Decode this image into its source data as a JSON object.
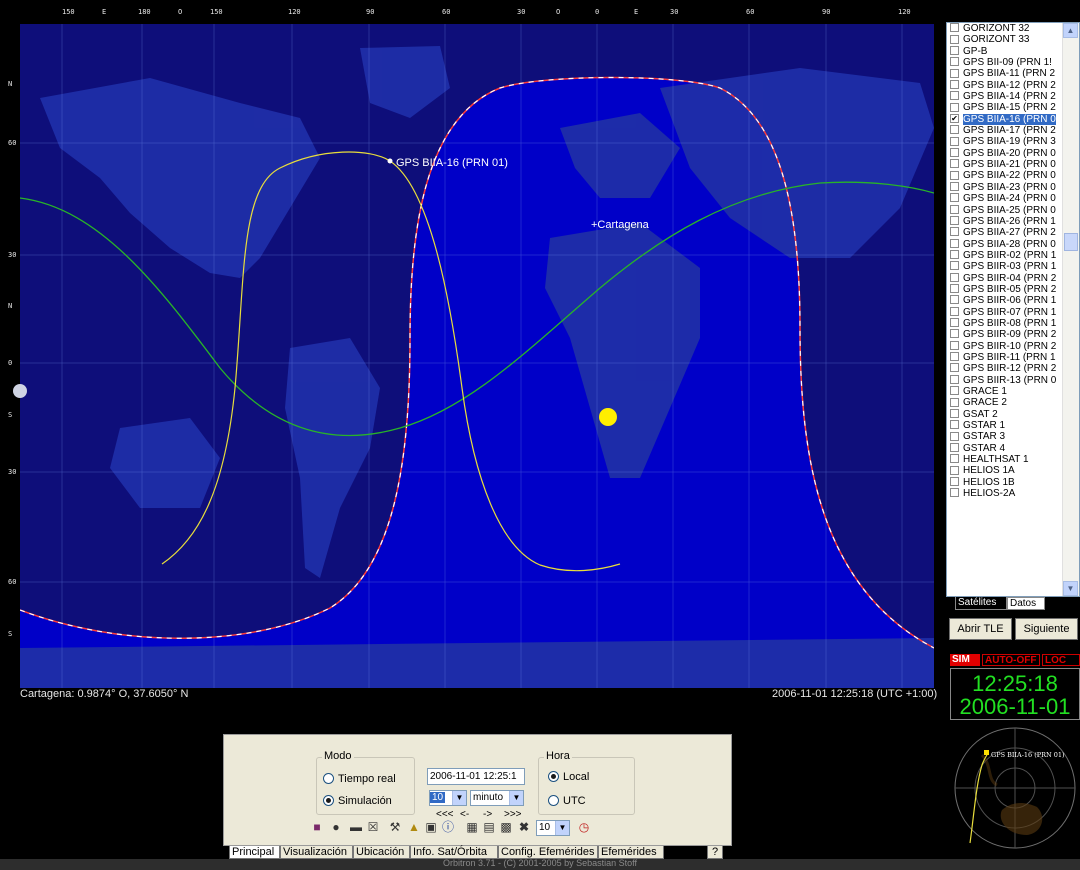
{
  "map": {
    "lon_labels": [
      "150",
      "E",
      "180",
      "O",
      "150",
      "120",
      "90",
      "60",
      "30",
      "O",
      "0",
      "E",
      "30",
      "60",
      "90",
      "120"
    ],
    "lat_labels": [
      "N",
      "60",
      "30",
      "N",
      "0",
      "S",
      "30",
      "60",
      "S"
    ],
    "satellite_label": "GPS BIIA-16 (PRN 01)",
    "city_label": "+Cartagena",
    "colors": {
      "ocean": "#0000c8",
      "night": "#0e0e7a",
      "land": "#1f2ea8",
      "track": "#e8dd3c",
      "equatorline": "#28b428",
      "sun": "#ffee00"
    }
  },
  "status": {
    "location": "Cartagena: 0.9874° O, 37.6050° N",
    "datetime": "2006-11-01 12:25:18 (UTC +1:00)"
  },
  "satellites": {
    "items": [
      {
        "name": "GORIZONT 32",
        "checked": false
      },
      {
        "name": "GORIZONT 33",
        "checked": false
      },
      {
        "name": "GP-B",
        "checked": false
      },
      {
        "name": "GPS BII-09 (PRN 1!",
        "checked": false
      },
      {
        "name": "GPS BIIA-11 (PRN 2",
        "checked": false
      },
      {
        "name": "GPS BIIA-12 (PRN 2",
        "checked": false
      },
      {
        "name": "GPS BIIA-14 (PRN 2",
        "checked": false
      },
      {
        "name": "GPS BIIA-15 (PRN 2",
        "checked": false
      },
      {
        "name": "GPS BIIA-16 (PRN 0",
        "checked": true
      },
      {
        "name": "GPS BIIA-17 (PRN 2",
        "checked": false
      },
      {
        "name": "GPS BIIA-19 (PRN 3",
        "checked": false
      },
      {
        "name": "GPS BIIA-20 (PRN 0",
        "checked": false
      },
      {
        "name": "GPS BIIA-21 (PRN 0",
        "checked": false
      },
      {
        "name": "GPS BIIA-22 (PRN 0",
        "checked": false
      },
      {
        "name": "GPS BIIA-23 (PRN 0",
        "checked": false
      },
      {
        "name": "GPS BIIA-24 (PRN 0",
        "checked": false
      },
      {
        "name": "GPS BIIA-25 (PRN 0",
        "checked": false
      },
      {
        "name": "GPS BIIA-26 (PRN 1",
        "checked": false
      },
      {
        "name": "GPS BIIA-27 (PRN 2",
        "checked": false
      },
      {
        "name": "GPS BIIA-28 (PRN 0",
        "checked": false
      },
      {
        "name": "GPS BIIR-02 (PRN 1",
        "checked": false
      },
      {
        "name": "GPS BIIR-03 (PRN 1",
        "checked": false
      },
      {
        "name": "GPS BIIR-04 (PRN 2",
        "checked": false
      },
      {
        "name": "GPS BIIR-05 (PRN 2",
        "checked": false
      },
      {
        "name": "GPS BIIR-06 (PRN 1",
        "checked": false
      },
      {
        "name": "GPS BIIR-07 (PRN 1",
        "checked": false
      },
      {
        "name": "GPS BIIR-08 (PRN 1",
        "checked": false
      },
      {
        "name": "GPS BIIR-09 (PRN 2",
        "checked": false
      },
      {
        "name": "GPS BIIR-10 (PRN 2",
        "checked": false
      },
      {
        "name": "GPS BIIR-11 (PRN 1",
        "checked": false
      },
      {
        "name": "GPS BIIR-12 (PRN 2",
        "checked": false
      },
      {
        "name": "GPS BIIR-13 (PRN 0",
        "checked": false
      },
      {
        "name": "GRACE 1",
        "checked": false
      },
      {
        "name": "GRACE 2",
        "checked": false
      },
      {
        "name": "GSAT 2",
        "checked": false
      },
      {
        "name": "GSTAR 1",
        "checked": false
      },
      {
        "name": "GSTAR 3",
        "checked": false
      },
      {
        "name": "GSTAR 4",
        "checked": false
      },
      {
        "name": "HEALTHSAT 1",
        "checked": false
      },
      {
        "name": "HELIOS 1A",
        "checked": false
      },
      {
        "name": "HELIOS 1B",
        "checked": false
      },
      {
        "name": "HELIOS-2A",
        "checked": false
      }
    ],
    "selected_index": 8,
    "scroll_up_icon": "chevron-up-icon",
    "scroll_down_icon": "chevron-down-icon",
    "tabs": {
      "satelites": "Satélites",
      "datos": "Datos"
    }
  },
  "buttons": {
    "open_tle": "Abrir TLE",
    "next": "Siguiente"
  },
  "clock": {
    "sim": "SIM",
    "auto": "AUTO-OFF",
    "loc": "LOC",
    "time": "12:25:18",
    "date": "2006-11-01",
    "radar_label": "GPS BIIA-16 (PRN 01)"
  },
  "controls": {
    "modo": {
      "title": "Modo",
      "tiempo_real": "Tiempo real",
      "simulacion": "Simulación",
      "selected": "simulacion"
    },
    "datetime_value": "2006-11-01 12:25:1",
    "step_value": "10",
    "step_unit": "minuto",
    "step_buttons": [
      "<<<",
      "<-",
      "->",
      ">>>"
    ],
    "hora": {
      "title": "Hora",
      "local": "Local",
      "utc": "UTC",
      "selected": "local"
    },
    "toolbar_icons": [
      "book-icon",
      "camera-icon",
      "minimize-icon",
      "close-window-icon",
      "tools-icon",
      "open-folder-icon",
      "save-icon",
      "info-icon",
      "grid-icon",
      "table-icon",
      "layout-icon",
      "fullscreen-icon"
    ],
    "zoom_value": "10",
    "clock_icon": "clock-icon"
  },
  "panel_tabs": [
    "Principal",
    "Visualización",
    "Ubicación",
    "Info. Sat/Órbita",
    "Config. Efemérides",
    "Efemérides",
    "?"
  ],
  "footer": "Orbitron 3.71 - (C) 2001-2005 by Sebastian Stoff"
}
